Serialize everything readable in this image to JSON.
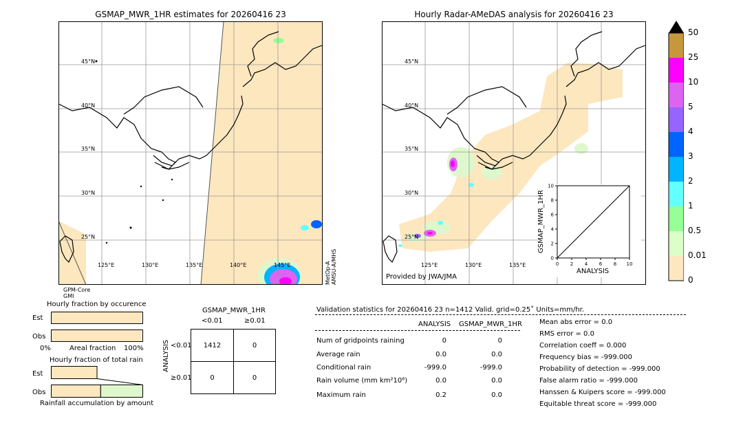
{
  "colors": {
    "land_rain": "#fde7bf",
    "light_green": "#dff7cc",
    "coast": "#000000",
    "grid": "#999999"
  },
  "left_map": {
    "title": "GSMAP_MWR_1HR estimates for 20260416 23",
    "lat_labels": [
      "45°N",
      "40°N",
      "35°N",
      "30°N",
      "25°N"
    ],
    "lon_labels": [
      "125°E",
      "130°E",
      "135°E",
      "140°E",
      "145°E"
    ],
    "sensor_bottom": "GPM-Core\nGMI",
    "sensor_right": "MetOp-A\nAMSU-A/MHS"
  },
  "right_map": {
    "title": "Hourly Radar-AMeDAS analysis for 20260416 23",
    "lat_labels": [
      "45°N",
      "40°N",
      "35°N",
      "30°N",
      "25°N"
    ],
    "lon_labels": [
      "125°E",
      "130°E",
      "135°E"
    ],
    "credit": "Provided by JWA/JMA"
  },
  "colorbar": {
    "labels": [
      "50",
      "25",
      "10",
      "5",
      "4",
      "3",
      "2",
      "1",
      "0.5",
      "0.01",
      "0"
    ],
    "colors": [
      "#c8963c",
      "#ff00ff",
      "#dc64f0",
      "#9664ff",
      "#0064ff",
      "#00b4ff",
      "#64ffff",
      "#96ff96",
      "#dcffc8",
      "#fde7bf"
    ]
  },
  "chart_data": [
    {
      "type": "line",
      "title": "",
      "xlabel": "ANALYSIS",
      "ylabel": "GSMAP_MWR_1HR",
      "xlim": [
        0,
        10
      ],
      "ylim": [
        0,
        10
      ],
      "x_ticks": [
        "0",
        "2",
        "4",
        "6",
        "8",
        "10"
      ],
      "y_ticks": [
        "0",
        "2",
        "4",
        "6",
        "8",
        "10"
      ],
      "series": [
        {
          "x": [
            0,
            10
          ],
          "y": [
            0,
            10
          ]
        }
      ]
    },
    {
      "type": "bar",
      "title": "Hourly fraction by occurence",
      "categories": [
        "Est",
        "Obs"
      ],
      "values": [
        0.99,
        0.99
      ],
      "xlabel": "Areal fraction",
      "x_ticks": [
        "0%",
        "100%"
      ]
    },
    {
      "type": "bar",
      "title": "Hourly fraction of total rain",
      "categories": [
        "Est",
        "Obs"
      ],
      "values": [
        0.5,
        0.54
      ],
      "xlabel": "Rainfall accumulation by amount"
    }
  ],
  "contingency": {
    "title": "GSMAP_MWR_1HR",
    "col_headers": [
      "<0.01",
      "≥0.01"
    ],
    "row_axis": "ANALYSIS",
    "row_headers": [
      "<0.01",
      "≥0.01"
    ],
    "cells": [
      [
        "1412",
        "0"
      ],
      [
        "0",
        "0"
      ]
    ]
  },
  "validation": {
    "header": "Validation statistics for 20260416 23  n=1412 Valid. grid=0.25˚ Units=mm/hr.",
    "col_analysis": "ANALYSIS",
    "col_gsmap": "GSMAP_MWR_1HR",
    "rows": [
      {
        "label": "Num of gridpoints raining",
        "analysis": "0",
        "gsmap": "0"
      },
      {
        "label": "Average rain",
        "analysis": "0.0",
        "gsmap": "0.0"
      },
      {
        "label": "Conditional rain",
        "analysis": "-999.0",
        "gsmap": "-999.0"
      },
      {
        "label": "Rain volume (mm km²10⁶)",
        "analysis": "0.0",
        "gsmap": "0.0"
      },
      {
        "label": "Maximum rain",
        "analysis": "0.2",
        "gsmap": "0.0"
      }
    ],
    "scores": [
      "Mean abs error =    0.0",
      "RMS error =    0.0",
      "Correlation coeff =  0.000",
      "Frequency bias = -999.000",
      "Probability of detection = -999.000",
      "False alarm ratio = -999.000",
      "Hanssen & Kuipers score = -999.000",
      "Equitable threat score = -999.000"
    ]
  }
}
